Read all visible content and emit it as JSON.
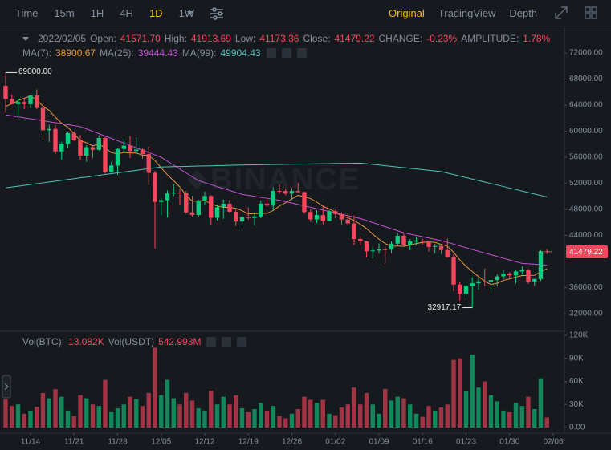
{
  "toolbar": {
    "intervals": [
      "Time",
      "15m",
      "1H",
      "4H",
      "1D",
      "1W"
    ],
    "views": [
      "Original",
      "TradingView",
      "Depth"
    ]
  },
  "legend": {
    "date": "2022/02/05",
    "items": [
      {
        "label": "Open:",
        "value": "41571.70"
      },
      {
        "label": "High:",
        "value": "41913.69"
      },
      {
        "label": "Low:",
        "value": "41173.36"
      },
      {
        "label": "Close:",
        "value": "41479.22"
      },
      {
        "label": "CHANGE:",
        "value": "-0.23%"
      },
      {
        "label": "AMPLITUDE:",
        "value": "1.78%"
      }
    ]
  },
  "chart_data": [
    {
      "type": "candlestick",
      "up_color": "#0ecb81",
      "down_color": "#f6465d",
      "ylim": [
        29660,
        75450
      ],
      "yticks": [
        {
          "value": 72000,
          "label": "72000.00"
        },
        {
          "value": 68000,
          "label": "68000.00"
        },
        {
          "value": 64000,
          "label": "64000.00"
        },
        {
          "value": 60000,
          "label": "60000.00"
        },
        {
          "value": 56000,
          "label": "56000.00"
        },
        {
          "value": 52000,
          "label": "52000.00"
        },
        {
          "value": 48000,
          "label": "48000.00"
        },
        {
          "value": 44000,
          "label": "44000.00"
        },
        {
          "value": 36000,
          "label": "36000.00"
        },
        {
          "value": 32000,
          "label": "32000.00"
        }
      ],
      "high_label": "69000.00",
      "low_label": "32917.17",
      "last_label": "41479.22",
      "watermark": "BINANCE",
      "open": [
        66947,
        64952,
        64155,
        64469,
        64138,
        65466,
        63557,
        60139,
        60344,
        56891,
        58052,
        59707,
        58622,
        56247,
        57541,
        57138,
        58960,
        53726,
        54721,
        57274,
        57776,
        56950,
        57184,
        56480,
        53601,
        49152,
        49396,
        50441,
        50589,
        50471,
        47545,
        47140,
        49389,
        50053,
        46702,
        48343,
        48864,
        47632,
        46131,
        46834,
        46681,
        46914,
        48889,
        48588,
        50838,
        50821,
        50429,
        50809,
        50640,
        47588,
        46464,
        47120,
        46216,
        47722,
        47286,
        46446,
        45832,
        43451,
        43082,
        41566,
        41679,
        41864,
        41822,
        42736,
        43949,
        42591,
        43099,
        43177,
        43113,
        42250,
        42375,
        41744,
        40680,
        36445,
        35071,
        36244,
        36660,
        36958,
        36809,
        37160,
        37716,
        38166,
        37881,
        38466,
        38694,
        36896,
        37311,
        41571.7
      ],
      "high": [
        69000,
        65600,
        65000,
        65000,
        65550,
        66401,
        63800,
        61000,
        60976,
        58350,
        59900,
        60000,
        59400,
        57850,
        57700,
        59400,
        59200,
        55300,
        57400,
        58865,
        59250,
        59041,
        57400,
        57600,
        53859,
        49700,
        50900,
        51936,
        51200,
        50800,
        50100,
        49485,
        50724,
        50189,
        48700,
        49500,
        49436,
        47995,
        47392,
        48300,
        47537,
        49328,
        49576,
        51375,
        51868,
        51156,
        51280,
        52088,
        50704,
        48139,
        47900,
        48548,
        47954,
        47990,
        47570,
        47510,
        47070,
        43816,
        43145,
        42300,
        42786,
        42248,
        43100,
        44322,
        44500,
        43448,
        43800,
        43478,
        43180,
        42691,
        42559,
        43505,
        41100,
        36835,
        36499,
        37550,
        37545,
        38919,
        37234,
        38000,
        38720,
        38359,
        38744,
        39265,
        38855,
        37387,
        41772,
        41913.69
      ],
      "low": [
        62822,
        64100,
        62278,
        63400,
        63500,
        63400,
        58574,
        58373,
        56474,
        55600,
        57400,
        58500,
        55600,
        55300,
        55900,
        57000,
        53500,
        53600,
        53300,
        56650,
        55875,
        56458,
        55800,
        51680,
        42000,
        47100,
        46751,
        50039,
        48600,
        47300,
        46900,
        46852,
        48638,
        45672,
        46300,
        46547,
        47511,
        45456,
        45500,
        46406,
        45558,
        46630,
        48421,
        47920,
        50390,
        50142,
        49412,
        50449,
        47313,
        46096,
        45900,
        45678,
        46208,
        46654,
        45696,
        45500,
        42500,
        42430,
        40610,
        40501,
        41200,
        39650,
        41268,
        42450,
        42311,
        41725,
        42555,
        42581,
        41540,
        41250,
        41138,
        40553,
        35440,
        34008,
        34601,
        32917.17,
        35701,
        36234,
        35507,
        36155,
        37268,
        37351,
        36632,
        38000,
        36586,
        36250,
        37026,
        41173.36
      ],
      "close": [
        64952,
        64155,
        64469,
        64138,
        65466,
        63557,
        60139,
        60344,
        56891,
        58052,
        59707,
        58622,
        56247,
        57541,
        57138,
        58960,
        53726,
        54721,
        57274,
        57776,
        56950,
        57184,
        56480,
        53601,
        49152,
        49396,
        50441,
        50589,
        50471,
        47545,
        47140,
        49389,
        50053,
        46702,
        48343,
        48864,
        47632,
        46131,
        46834,
        46681,
        46914,
        48889,
        48588,
        50838,
        50821,
        50429,
        50809,
        50640,
        47588,
        46464,
        47120,
        46216,
        47722,
        47286,
        46446,
        45832,
        43451,
        43082,
        41566,
        41679,
        41864,
        41822,
        42736,
        43949,
        42591,
        43099,
        43177,
        43113,
        42250,
        42375,
        41744,
        40680,
        36445,
        35071,
        36244,
        36660,
        36958,
        36809,
        37160,
        37716,
        38166,
        37881,
        38466,
        38694,
        36896,
        37311,
        41574,
        41479.22
      ],
      "series": [
        {
          "name": "MA(7):",
          "last_label": "38900.67",
          "color": "#e8953a",
          "values": [
            63800,
            64194,
            64689,
            65066,
            65376,
            64805,
            63839,
            63181,
            62143,
            61227,
            60594,
            59616,
            58572,
            58201,
            57743,
            58038,
            57420,
            56708,
            56515,
            56734,
            56649,
            56656,
            56302,
            56284,
            55488,
            54363,
            53315,
            52406,
            51447,
            50171,
            49248,
            49282,
            49375,
            48841,
            48520,
            48291,
            48303,
            48159,
            47794,
            47312,
            47343,
            47421,
            47381,
            47839,
            48509,
            49023,
            49613,
            50145,
            49959,
            49656,
            49124,
            48467,
            48080,
            47577,
            46977,
            46727,
            46296,
            45719,
            45055,
            44192,
            43417,
            42757,
            42314,
            42385,
            42315,
            42534,
            42748,
            42927,
            42988,
            42936,
            42621,
            42348,
            41398,
            40240,
            39258,
            38460,
            37686,
            36981,
            36478,
            36660,
            37102,
            37336,
            37594,
            37842,
            37854,
            37876,
            38427,
            38900.67
          ]
        },
        {
          "name": "MA(25):",
          "last_label": "39444.43",
          "color": "#c64fd6",
          "values": [
            62500,
            62350,
            62200,
            62050,
            61900,
            61750,
            61600,
            61450,
            61300,
            61150,
            61000,
            60850,
            60700,
            60340,
            59980,
            59620,
            59250,
            58890,
            58530,
            58170,
            57810,
            57450,
            57080,
            56720,
            56360,
            56000,
            55400,
            54800,
            54200,
            53600,
            53000,
            52400,
            52100,
            51800,
            51500,
            51200,
            50900,
            50600,
            50300,
            50150,
            50000,
            49850,
            49700,
            49550,
            49400,
            49190,
            48970,
            48760,
            48540,
            48330,
            48110,
            47900,
            47680,
            47470,
            47250,
            47030,
            46820,
            46600,
            46290,
            45970,
            45660,
            45340,
            45030,
            44710,
            44400,
            44200,
            44000,
            43800,
            43600,
            43400,
            43200,
            42930,
            42660,
            42390,
            42110,
            41840,
            41570,
            41300,
            41030,
            40770,
            40500,
            40230,
            39970,
            39700,
            39640,
            39580,
            39510,
            39444.43
          ]
        },
        {
          "name": "MA(99):",
          "last_label": "49904.43",
          "color": "#4cc3bb",
          "values": [
            51300,
            51430,
            51560,
            51680,
            51810,
            51940,
            52070,
            52200,
            52320,
            52450,
            52580,
            52710,
            52840,
            52960,
            53090,
            53220,
            53350,
            53480,
            53600,
            53730,
            53860,
            53990,
            54120,
            54240,
            54370,
            54500,
            54520,
            54550,
            54570,
            54590,
            54620,
            54640,
            54660,
            54680,
            54710,
            54730,
            54750,
            54780,
            54800,
            54820,
            54830,
            54850,
            54860,
            54880,
            54890,
            54910,
            54930,
            54940,
            54960,
            54970,
            54990,
            55000,
            55020,
            55040,
            55050,
            55070,
            55080,
            55100,
            55000,
            54900,
            54800,
            54700,
            54600,
            54500,
            54400,
            54300,
            54200,
            54100,
            54000,
            53900,
            53800,
            53570,
            53340,
            53110,
            52880,
            52650,
            52420,
            52190,
            51960,
            51730,
            51500,
            51270,
            51040,
            50820,
            50590,
            50360,
            50130,
            49904.43
          ]
        }
      ]
    },
    {
      "type": "bar",
      "up_color": "#0ecb81",
      "down_color": "#f6465d",
      "legend": [
        {
          "label": "Vol(BTC):",
          "value": "13.082K"
        },
        {
          "label": "Vol(USDT)",
          "value": "542.993M"
        }
      ],
      "ylim": [
        -7300,
        123100
      ],
      "yticks": [
        {
          "value": 120000,
          "label": "120K"
        },
        {
          "value": 90000,
          "label": "90K"
        },
        {
          "value": 60000,
          "label": "60K"
        },
        {
          "value": 30000,
          "label": "30K"
        },
        {
          "value": 0,
          "label": "0.00"
        }
      ],
      "categories": [
        null,
        null,
        null,
        null,
        "11/14",
        null,
        null,
        null,
        null,
        null,
        null,
        "11/21",
        null,
        null,
        null,
        null,
        null,
        null,
        "11/28",
        null,
        null,
        null,
        null,
        null,
        null,
        "12/05",
        null,
        null,
        null,
        null,
        null,
        null,
        "12/12",
        null,
        null,
        null,
        null,
        null,
        null,
        "12/19",
        null,
        null,
        null,
        null,
        null,
        null,
        "12/26",
        null,
        null,
        null,
        null,
        null,
        null,
        "01/02",
        null,
        null,
        null,
        null,
        null,
        null,
        "01/09",
        null,
        null,
        null,
        null,
        null,
        null,
        "01/16",
        null,
        null,
        null,
        null,
        null,
        null,
        "01/23",
        null,
        null,
        null,
        null,
        null,
        null,
        "01/30",
        null,
        null,
        null,
        null,
        null,
        null,
        "02/06"
      ],
      "values": [
        37000,
        28000,
        30000,
        18000,
        22000,
        27000,
        45000,
        38000,
        50000,
        40000,
        22000,
        15000,
        42000,
        38000,
        30000,
        28000,
        62000,
        20000,
        25000,
        30000,
        40000,
        37000,
        28000,
        45000,
        104000,
        42000,
        62000,
        38000,
        30000,
        45000,
        35000,
        25000,
        22000,
        48000,
        30000,
        40000,
        30000,
        42000,
        25000,
        20000,
        24000,
        32000,
        22000,
        28000,
        15000,
        12000,
        18000,
        24000,
        40000,
        36000,
        32000,
        36000,
        18000,
        16000,
        26000,
        30000,
        52000,
        30000,
        45000,
        30000,
        18000,
        50000,
        35000,
        40000,
        38000,
        30000,
        18000,
        14000,
        28000,
        22000,
        26000,
        30000,
        88000,
        90000,
        47000,
        95000,
        52000,
        60000,
        42000,
        34000,
        22000,
        20000,
        32000,
        28000,
        40000,
        24000,
        64000,
        13082,
        null
      ]
    }
  ]
}
